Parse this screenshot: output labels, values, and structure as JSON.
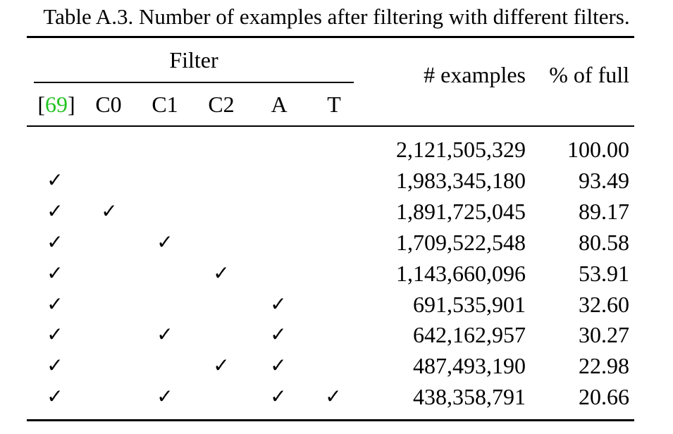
{
  "caption": "Table A.3. Number of examples after filtering with different filters.",
  "header": {
    "group_label": "Filter",
    "filter_columns": [
      {
        "open": "[",
        "link": "69",
        "close": "]"
      },
      {
        "label": "C0"
      },
      {
        "label": "C1"
      },
      {
        "label": "C2"
      },
      {
        "label": "A"
      },
      {
        "label": "T"
      }
    ],
    "examples_label": "# examples",
    "percent_label": "% of full"
  },
  "check_glyph": "✓",
  "rows": [
    {
      "checks": [
        false,
        false,
        false,
        false,
        false,
        false
      ],
      "examples": "2,121,505,329",
      "percent": "100.00"
    },
    {
      "checks": [
        true,
        false,
        false,
        false,
        false,
        false
      ],
      "examples": "1,983,345,180",
      "percent": "93.49"
    },
    {
      "checks": [
        true,
        true,
        false,
        false,
        false,
        false
      ],
      "examples": "1,891,725,045",
      "percent": "89.17"
    },
    {
      "checks": [
        true,
        false,
        true,
        false,
        false,
        false
      ],
      "examples": "1,709,522,548",
      "percent": "80.58"
    },
    {
      "checks": [
        true,
        false,
        false,
        true,
        false,
        false
      ],
      "examples": "1,143,660,096",
      "percent": "53.91"
    },
    {
      "checks": [
        true,
        false,
        false,
        false,
        true,
        false
      ],
      "examples": "691,535,901",
      "percent": "32.60"
    },
    {
      "checks": [
        true,
        false,
        true,
        false,
        true,
        false
      ],
      "examples": "642,162,957",
      "percent": "30.27"
    },
    {
      "checks": [
        true,
        false,
        false,
        true,
        true,
        false
      ],
      "examples": "487,493,190",
      "percent": "22.98"
    },
    {
      "checks": [
        true,
        false,
        true,
        false,
        true,
        true
      ],
      "examples": "438,358,791",
      "percent": "20.66"
    }
  ]
}
